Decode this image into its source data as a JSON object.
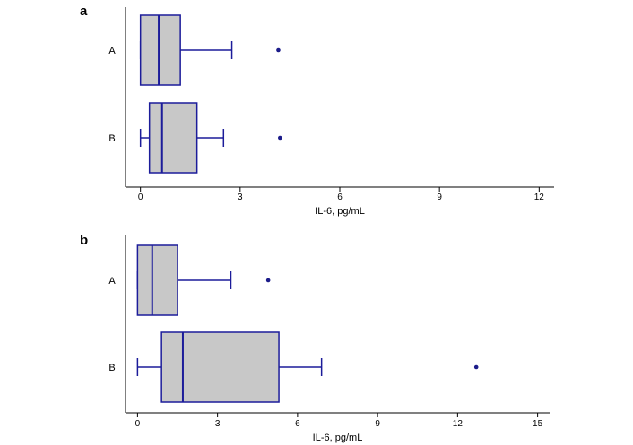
{
  "chart_data": [
    {
      "type": "boxplot",
      "panel_label": "a",
      "orientation": "horizontal",
      "xlabel": "IL-6, pg/mL",
      "xlim": [
        -0.45,
        12.45
      ],
      "xticks": [
        0,
        3,
        6,
        9,
        12
      ],
      "xtick_labels": [
        "0",
        "3",
        "6",
        "9",
        "12"
      ],
      "categories": [
        "A",
        "B"
      ],
      "boxes": [
        {
          "category": "A",
          "whisker_low": 0.0,
          "q1": 0.0,
          "median": 0.55,
          "q3": 1.2,
          "whisker_high": 2.75,
          "outliers": [
            4.15
          ]
        },
        {
          "category": "B",
          "whisker_low": 0.0,
          "q1": 0.27,
          "median": 0.65,
          "q3": 1.7,
          "whisker_high": 2.5,
          "outliers": [
            4.2
          ]
        }
      ],
      "colors": {
        "box_fill": "#c8c8c8",
        "box_stroke": "#1c1c9a",
        "outlier": "#1c1c8a"
      }
    },
    {
      "type": "boxplot",
      "panel_label": "b",
      "orientation": "horizontal",
      "xlabel": "IL-6, pg/mL",
      "xlim": [
        -0.45,
        15.45
      ],
      "xticks": [
        0,
        3,
        6,
        9,
        12,
        15
      ],
      "xtick_labels": [
        "0",
        "3",
        "6",
        "9",
        "12",
        "15"
      ],
      "categories": [
        "A",
        "B"
      ],
      "boxes": [
        {
          "category": "A",
          "whisker_low": 0.0,
          "q1": 0.0,
          "median": 0.55,
          "q3": 1.5,
          "whisker_high": 3.5,
          "outliers": [
            4.9
          ]
        },
        {
          "category": "B",
          "whisker_low": 0.0,
          "q1": 0.9,
          "median": 1.7,
          "q3": 5.3,
          "whisker_high": 6.9,
          "outliers": [
            12.7
          ]
        }
      ],
      "colors": {
        "box_fill": "#c8c8c8",
        "box_stroke": "#1c1c9a",
        "outlier": "#1c1c8a"
      }
    }
  ]
}
